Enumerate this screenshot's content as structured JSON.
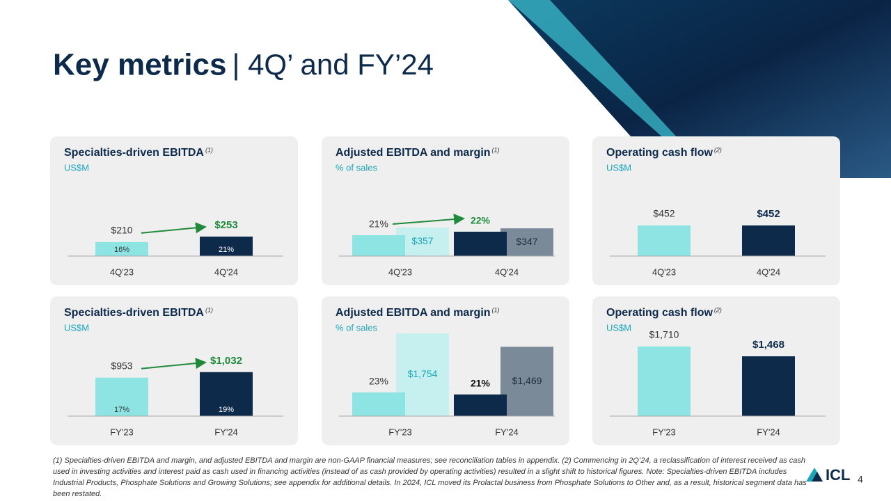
{
  "title": "Key metrics",
  "title_suffix": "| 4Q’ and FY’24",
  "footnote": "(1) Specialties-driven EBITDA and margin, and adjusted EBITDA and margin are non-GAAP financial measures; see reconciliation tables in appendix. (2) Commencing in 2Q’24, a reclassification of interest received as cash used in investing activities and interest paid as cash used in financing activities (instead of as cash provided by operating activities) resulted in a slight shift to historical figures. Note: Specialties-driven EBITDA includes Industrial Products, Phosphate Solutions and Growing Solutions; see appendix for additional details. In 2024, ICL moved its Prolactal business from Phosphate Solutions to Other and, as a result, historical segment data has been restated.",
  "page_number": "4",
  "logo": "ICL",
  "chart_data": [
    {
      "type": "bar",
      "title": "Specialties-driven EBITDA",
      "title_note": "(1)",
      "subtitle": "US$M",
      "categories": [
        "4Q'23",
        "4Q'24"
      ],
      "values": [
        210,
        253
      ],
      "value_labels": [
        "$210",
        "$253"
      ],
      "colors": [
        "#8ee3e3",
        "#0d2a4a"
      ],
      "margins": [
        16,
        21
      ],
      "margin_labels": [
        "16%",
        "21%"
      ],
      "ylim": [
        100,
        756
      ],
      "highlight_color": "#1e8a3a",
      "arrow": true
    },
    {
      "type": "grouped_bar",
      "title": "Adjusted EBITDA and margin",
      "title_note": "(1)",
      "subtitle": "% of sales",
      "categories": [
        "4Q'23",
        "4Q'24"
      ],
      "series": [
        {
          "values": [
            357,
            347
          ],
          "value_labels": [
            "$357",
            "$347"
          ],
          "colors": [
            "#c6eff0",
            "#7b8a99"
          ],
          "label_colors": [
            "#1aa6b7",
            "#1f2d3d"
          ]
        },
        {
          "values": [
            21,
            22
          ],
          "value_labels": [
            "21%",
            "22%"
          ],
          "colors": [
            "#8ee3e3",
            "#0d2a4a"
          ],
          "axis": "y2"
        }
      ],
      "ylim": [
        0,
        1045
      ],
      "y2lim": [
        15,
        39
      ],
      "highlight_color": "#1e8a3a",
      "arrow": true
    },
    {
      "type": "bar",
      "title": "Operating cash flow",
      "title_note": "(2)",
      "subtitle": "US$M",
      "categories": [
        "4Q'23",
        "4Q'24"
      ],
      "values": [
        452,
        452
      ],
      "value_labels": [
        "$452",
        "$452"
      ],
      "colors": [
        "#8ee3e3",
        "#0d2a4a"
      ],
      "ylim": [
        0,
        1233
      ],
      "highlight_color": "#0d2a4a",
      "arrow": false
    },
    {
      "type": "bar",
      "title": "Specialties-driven EBITDA",
      "title_note": "(1)",
      "subtitle": "US$M",
      "categories": [
        "FY'23",
        "FY'24"
      ],
      "values": [
        953,
        1032
      ],
      "value_labels": [
        "$953",
        "$1,032"
      ],
      "colors": [
        "#8ee3e3",
        "#0d2a4a"
      ],
      "margins": [
        17,
        19
      ],
      "margin_labels": [
        "17%",
        "19%"
      ],
      "ylim": [
        400,
        1600
      ],
      "highlight_color": "#1e8a3a",
      "arrow": true
    },
    {
      "type": "grouped_bar",
      "title": "Adjusted EBITDA and margin",
      "title_note": "(1)",
      "subtitle": "% of sales",
      "categories": [
        "FY'23",
        "FY'24"
      ],
      "series": [
        {
          "values": [
            1754,
            1469
          ],
          "value_labels": [
            "$1,754",
            "$1,469"
          ],
          "colors": [
            "#c6eff0",
            "#7b8a99"
          ],
          "label_colors": [
            "#1aa6b7",
            "#1f2d3d"
          ]
        },
        {
          "values": [
            23,
            21
          ],
          "value_labels": [
            "23%",
            "21%"
          ],
          "colors": [
            "#8ee3e3",
            "#0d2a4a"
          ],
          "axis": "y2"
        }
      ],
      "ylim": [
        0,
        1770
      ],
      "y2lim": [
        0,
        81
      ],
      "highlight_color": "#111111",
      "arrow": false
    },
    {
      "type": "bar",
      "title": "Operating cash flow",
      "title_note": "(2)",
      "subtitle": "US$M",
      "categories": [
        "FY'23",
        "FY'24"
      ],
      "values": [
        1710,
        1468
      ],
      "value_labels": [
        "$1,710",
        "$1,468"
      ],
      "colors": [
        "#8ee3e3",
        "#0d2a4a"
      ],
      "ylim": [
        0,
        2050
      ],
      "highlight_color": "#0d2a4a",
      "arrow": false
    }
  ]
}
